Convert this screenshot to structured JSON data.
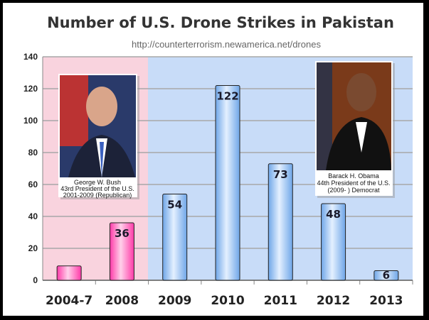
{
  "chart_data": {
    "type": "bar",
    "title": "Number of U.S. Drone Strikes in Pakistan",
    "subtitle": "http://counterterrorism.newamerica.net/drones",
    "categories": [
      "2004-7",
      "2008",
      "2009",
      "2010",
      "2011",
      "2012",
      "2013"
    ],
    "values": [
      9,
      36,
      54,
      122,
      73,
      48,
      6
    ],
    "data_labels": [
      "",
      "36",
      "54",
      "122",
      "73",
      "48",
      "6"
    ],
    "ylim": [
      0,
      140
    ],
    "yticks": [
      0,
      20,
      40,
      60,
      80,
      100,
      120,
      140
    ],
    "grid": true,
    "xlabel": "",
    "ylabel": "",
    "colors": {
      "bush_era": "#ff3aa8",
      "obama_era": "#6fa6e8",
      "bush_bg": "#f9d3de",
      "obama_bg": "#c8dcf8"
    },
    "annotations": [
      {
        "lines": [
          "George W. Bush",
          "43rd President of the U.S.",
          "2001-2009  (Republican)"
        ]
      },
      {
        "lines": [
          "Barack H. Obama",
          "44th President of the U.S.",
          "(2009- )  Democrat"
        ]
      }
    ]
  }
}
